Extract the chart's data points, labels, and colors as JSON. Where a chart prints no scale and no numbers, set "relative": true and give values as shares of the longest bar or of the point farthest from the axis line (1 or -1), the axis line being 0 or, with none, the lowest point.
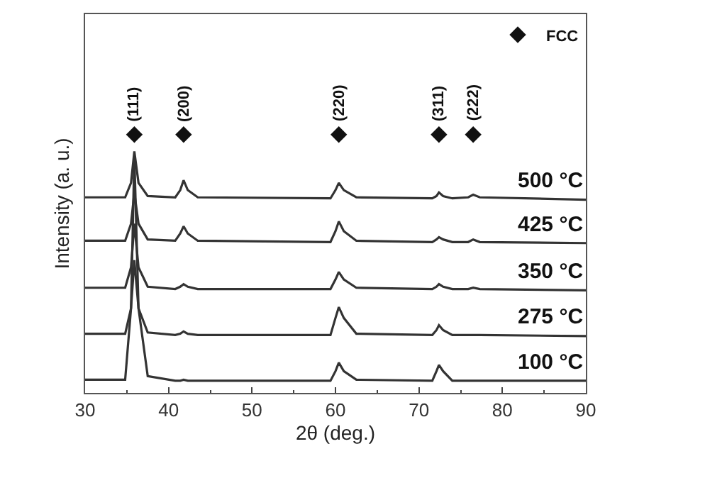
{
  "chart_data": {
    "type": "line",
    "xlabel": "2θ (deg.)",
    "ylabel": "Intensity (a. u.)",
    "relative": true,
    "tick_labels": "x",
    "xlim": [
      30,
      90
    ],
    "xticks": [
      30,
      40,
      50,
      60,
      70,
      80,
      90
    ],
    "legend": "top right",
    "marker": "none",
    "line_style": "solid",
    "x": [
      30,
      34.8,
      35.5,
      35.9,
      36.4,
      37.5,
      40.8,
      41.4,
      41.8,
      42.3,
      43.5,
      59.4,
      60.0,
      60.4,
      61.0,
      62.5,
      71.6,
      72.1,
      72.4,
      72.9,
      74.0,
      75.9,
      76.5,
      77.3,
      90
    ],
    "series": [
      {
        "name": "500 °C",
        "color": "#333333",
        "values": [
          0.757,
          0.757,
          0.813,
          0.935,
          0.813,
          0.762,
          0.757,
          0.785,
          0.823,
          0.785,
          0.757,
          0.753,
          0.785,
          0.813,
          0.785,
          0.757,
          0.753,
          0.762,
          0.776,
          0.762,
          0.753,
          0.757,
          0.767,
          0.757,
          0.748
        ]
      },
      {
        "name": "425 °C",
        "color": "#333333",
        "values": [
          0.589,
          0.589,
          0.655,
          0.776,
          0.655,
          0.594,
          0.589,
          0.617,
          0.645,
          0.617,
          0.589,
          0.584,
          0.626,
          0.664,
          0.626,
          0.589,
          0.584,
          0.594,
          0.603,
          0.594,
          0.584,
          0.584,
          0.594,
          0.584,
          0.58
        ]
      },
      {
        "name": "350 °C",
        "color": "#333333",
        "values": [
          0.407,
          0.407,
          0.486,
          0.655,
          0.486,
          0.411,
          0.402,
          0.411,
          0.421,
          0.411,
          0.402,
          0.402,
          0.439,
          0.468,
          0.439,
          0.407,
          0.402,
          0.411,
          0.421,
          0.411,
          0.402,
          0.402,
          0.407,
          0.402,
          0.397
        ]
      },
      {
        "name": "275 °C",
        "color": "#333333",
        "values": [
          0.229,
          0.229,
          0.327,
          0.514,
          0.327,
          0.234,
          0.224,
          0.229,
          0.238,
          0.229,
          0.224,
          0.224,
          0.29,
          0.332,
          0.29,
          0.229,
          0.224,
          0.243,
          0.262,
          0.243,
          0.224,
          0.224,
          0.224,
          0.224,
          0.22
        ]
      },
      {
        "name": "100 °C",
        "color": "#333333",
        "values": [
          0.051,
          0.051,
          0.327,
          0.916,
          0.327,
          0.065,
          0.047,
          0.047,
          0.051,
          0.047,
          0.047,
          0.047,
          0.084,
          0.117,
          0.084,
          0.051,
          0.047,
          0.084,
          0.108,
          0.084,
          0.047,
          0.047,
          0.047,
          0.047,
          0.047
        ]
      },
      {
        "name": "FCC",
        "type": "scatter",
        "marker": "diamond",
        "color": "#111111",
        "x": [
          35.9,
          41.8,
          60.4,
          72.4,
          76.5
        ],
        "values": [
          1,
          1,
          1,
          1,
          1
        ]
      }
    ],
    "annotations": [
      {
        "text": "(111)",
        "x": 35.9,
        "y": 1.04
      },
      {
        "text": "(200)",
        "x": 41.8,
        "y": 1.04
      },
      {
        "text": "(220)",
        "x": 60.4,
        "y": 1.04
      },
      {
        "text": "(311)",
        "x": 72.4,
        "y": 1.04
      },
      {
        "text": "(222)",
        "x": 76.5,
        "y": 1.04
      }
    ]
  }
}
